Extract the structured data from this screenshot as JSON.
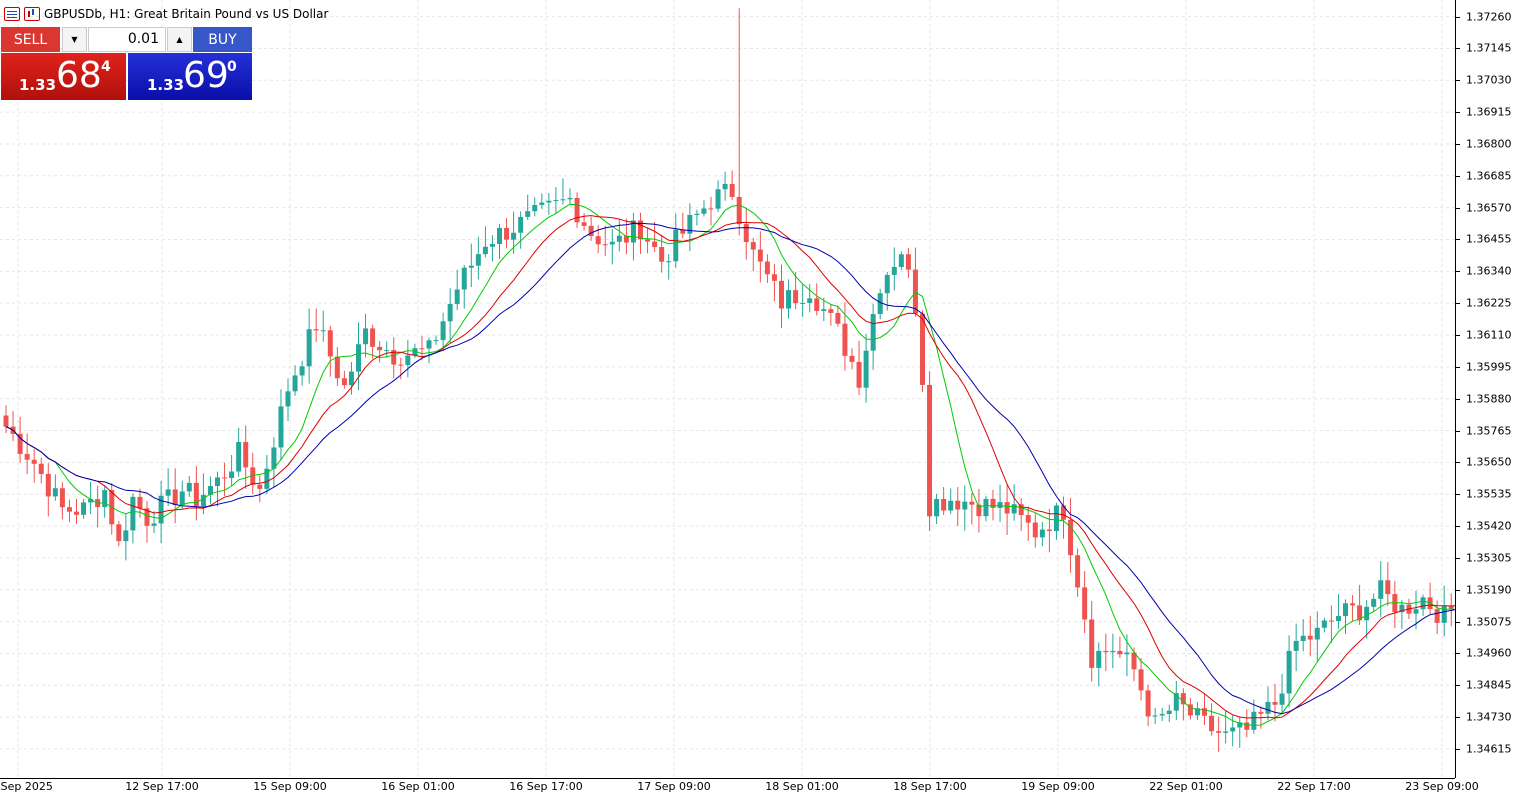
{
  "header": {
    "symbol_title": "GBPUSDb, H1:  Great Britain Pound vs US Dollar"
  },
  "trade_panel": {
    "sell_label": "SELL",
    "buy_label": "BUY",
    "volume": "0.01",
    "sell_price": {
      "prefix": "1.33",
      "big": "68",
      "sup": "4"
    },
    "buy_price": {
      "prefix": "1.33",
      "big": "69",
      "sup": "0"
    }
  },
  "colors": {
    "bull": "#26a69a",
    "bear": "#ef5350",
    "ma_fast": "#00cc00",
    "ma_mid": "#dd0000",
    "ma_slow": "#0000aa",
    "grid": "#e6e6e6"
  },
  "chart_data": {
    "type": "candlestick",
    "price_axis_ticks": [
      "1.37260",
      "1.37145",
      "1.37030",
      "1.36915",
      "1.36800",
      "1.36685",
      "1.36570",
      "1.36455",
      "1.36340",
      "1.36225",
      "1.36110",
      "1.35995",
      "1.35880",
      "1.35765",
      "1.35650",
      "1.35535",
      "1.35420",
      "1.35305",
      "1.35190",
      "1.35075",
      "1.34960",
      "1.34845",
      "1.34730",
      "1.34615"
    ],
    "time_axis_ticks": [
      "12 Sep 2025",
      "12 Sep 17:00",
      "15 Sep 09:00",
      "16 Sep 01:00",
      "16 Sep 17:00",
      "17 Sep 09:00",
      "18 Sep 01:00",
      "18 Sep 17:00",
      "19 Sep 09:00",
      "22 Sep 01:00",
      "22 Sep 17:00",
      "23 Sep 09:00"
    ],
    "y_range": [
      1.3451,
      1.3732
    ],
    "grid": true,
    "indicators": [
      "moving average (green)",
      "moving average (red)",
      "moving average (blue)"
    ],
    "anchors": [
      {
        "i": 0,
        "c": 1.3578
      },
      {
        "i": 4,
        "c": 1.3565
      },
      {
        "i": 8,
        "c": 1.3548
      },
      {
        "i": 11,
        "c": 1.3548
      },
      {
        "i": 14,
        "c": 1.3555
      },
      {
        "i": 16,
        "c": 1.3535
      },
      {
        "i": 18,
        "c": 1.3552
      },
      {
        "i": 20,
        "c": 1.3545
      },
      {
        "i": 25,
        "c": 1.3555
      },
      {
        "i": 27,
        "c": 1.3552
      },
      {
        "i": 30,
        "c": 1.3558
      },
      {
        "i": 33,
        "c": 1.3568
      },
      {
        "i": 36,
        "c": 1.3555
      },
      {
        "i": 40,
        "c": 1.3592
      },
      {
        "i": 44,
        "c": 1.3615
      },
      {
        "i": 48,
        "c": 1.3592
      },
      {
        "i": 51,
        "c": 1.3612
      },
      {
        "i": 55,
        "c": 1.3604
      },
      {
        "i": 60,
        "c": 1.3605
      },
      {
        "i": 64,
        "c": 1.3628
      },
      {
        "i": 68,
        "c": 1.3645
      },
      {
        "i": 72,
        "c": 1.365
      },
      {
        "i": 76,
        "c": 1.3655
      },
      {
        "i": 80,
        "c": 1.366
      },
      {
        "i": 83,
        "c": 1.3648
      },
      {
        "i": 86,
        "c": 1.3643
      },
      {
        "i": 90,
        "c": 1.365
      },
      {
        "i": 93,
        "c": 1.3638
      },
      {
        "i": 96,
        "c": 1.3648
      },
      {
        "i": 100,
        "c": 1.366
      },
      {
        "i": 103,
        "c": 1.3663
      },
      {
        "i": 106,
        "c": 1.364
      },
      {
        "i": 110,
        "c": 1.3623
      },
      {
        "i": 114,
        "c": 1.3628
      },
      {
        "i": 118,
        "c": 1.3612
      },
      {
        "i": 121,
        "c": 1.3596
      },
      {
        "i": 124,
        "c": 1.363
      },
      {
        "i": 127,
        "c": 1.3642
      },
      {
        "i": 129,
        "c": 1.3622
      },
      {
        "i": 130,
        "c": 1.3596
      },
      {
        "i": 131,
        "c": 1.355
      },
      {
        "i": 134,
        "c": 1.3552
      },
      {
        "i": 138,
        "c": 1.355
      },
      {
        "i": 142,
        "c": 1.3548
      },
      {
        "i": 146,
        "c": 1.354
      },
      {
        "i": 150,
        "c": 1.3548
      },
      {
        "i": 153,
        "c": 1.351
      },
      {
        "i": 154,
        "c": 1.3495
      },
      {
        "i": 157,
        "c": 1.3498
      },
      {
        "i": 160,
        "c": 1.349
      },
      {
        "i": 163,
        "c": 1.347
      },
      {
        "i": 166,
        "c": 1.3478
      },
      {
        "i": 170,
        "c": 1.347
      },
      {
        "i": 173,
        "c": 1.3466
      },
      {
        "i": 176,
        "c": 1.3468
      },
      {
        "i": 180,
        "c": 1.3478
      },
      {
        "i": 183,
        "c": 1.35
      },
      {
        "i": 186,
        "c": 1.3503
      },
      {
        "i": 189,
        "c": 1.351
      },
      {
        "i": 192,
        "c": 1.3512
      },
      {
        "i": 195,
        "c": 1.3518
      },
      {
        "i": 198,
        "c": 1.3512
      },
      {
        "i": 201,
        "c": 1.3516
      },
      {
        "i": 204,
        "c": 1.3509
      },
      {
        "i": 206,
        "c": 1.3515
      }
    ],
    "notable_wick": {
      "i": 104,
      "h": 1.3729
    }
  }
}
